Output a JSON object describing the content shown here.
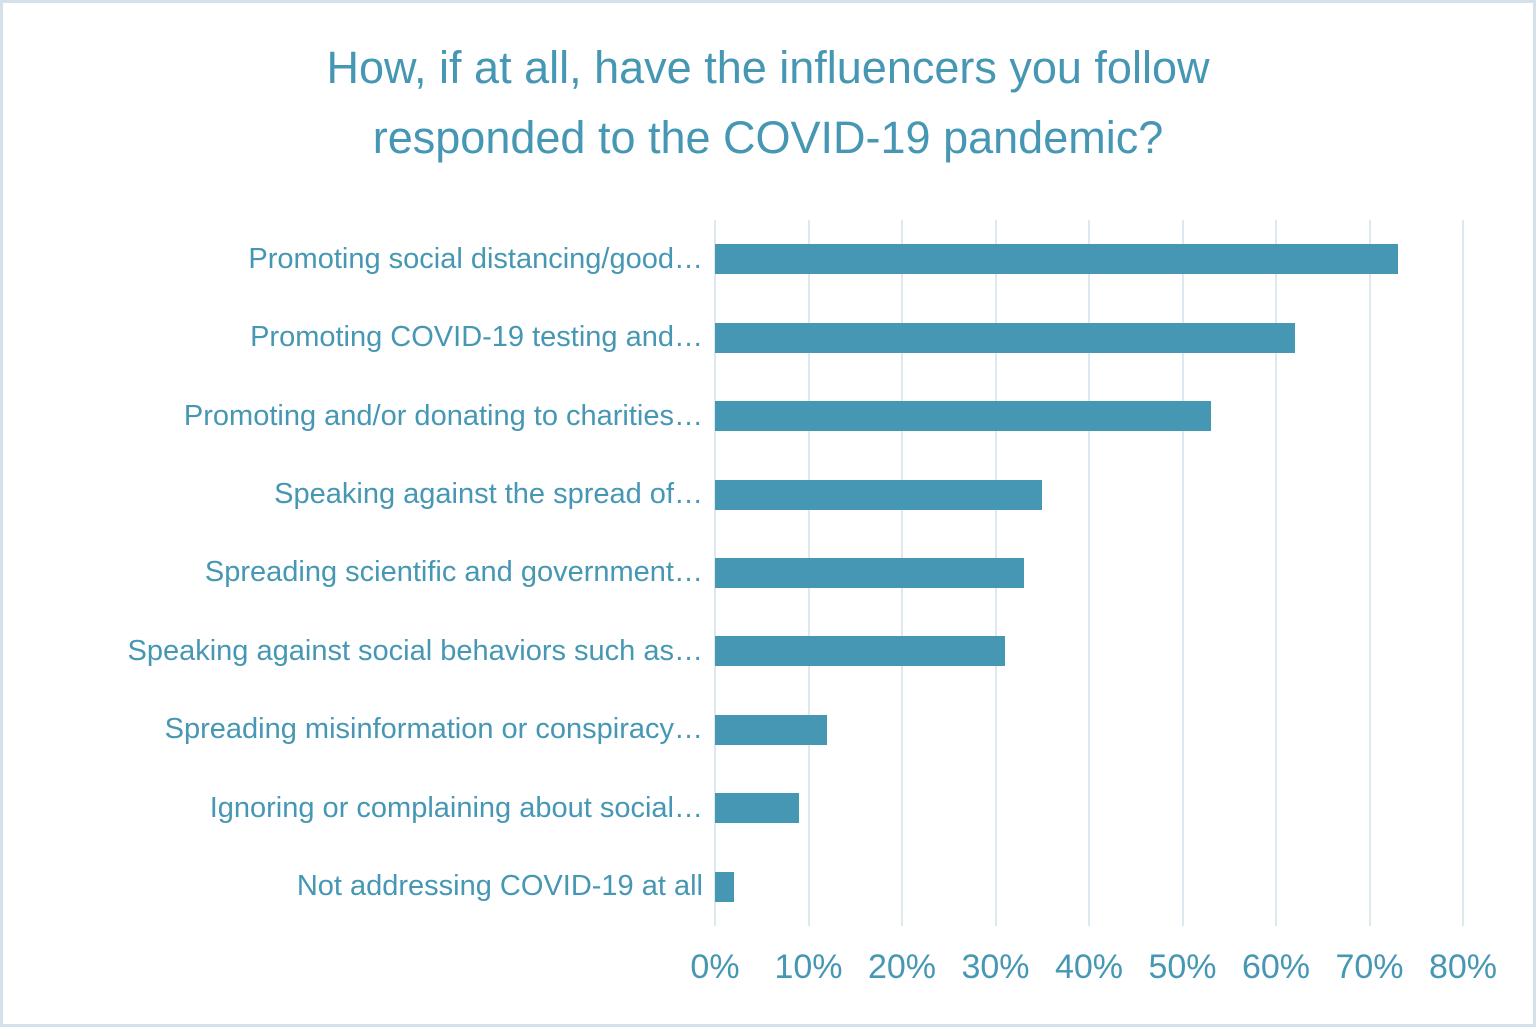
{
  "page": {
    "background": "#ffffff",
    "border_color": "#d3e2ea"
  },
  "chart_data": {
    "type": "bar",
    "orientation": "horizontal",
    "title": "How, if at all, have the influencers you follow responded to the COVID-19 pandemic?",
    "title_lines": [
      "How, if at all, have the influencers you follow",
      "responded to the COVID-19 pandemic?"
    ],
    "categories": [
      "Promoting social distancing/good…",
      "Promoting COVID-19 testing and…",
      "Promoting and/or donating to charities…",
      "Speaking against the spread of…",
      "Spreading scientific and government…",
      "Speaking against social behaviors such as…",
      "Spreading misinformation or conspiracy…",
      "Ignoring or complaining about social…",
      "Not addressing COVID-19 at all"
    ],
    "values": [
      73,
      62,
      53,
      35,
      33,
      31,
      12,
      9,
      2
    ],
    "unit": "%",
    "xlabel": "",
    "ylabel": "",
    "xlim": [
      0,
      80
    ],
    "x_ticks": [
      "0%",
      "10%",
      "20%",
      "30%",
      "40%",
      "50%",
      "60%",
      "70%",
      "80%"
    ],
    "grid": "vertical-only",
    "legend": "none",
    "bar_color": "#4697b4",
    "text_color": "#4697b4",
    "gridline_color": "#dce9ef"
  }
}
